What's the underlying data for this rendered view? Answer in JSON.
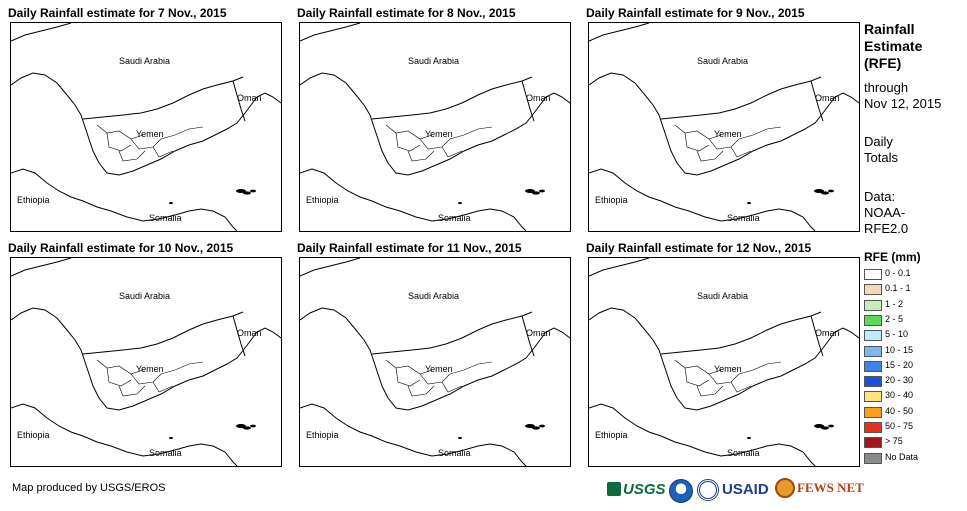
{
  "panels": [
    {
      "title": "Daily Rainfall estimate for 7 Nov., 2015"
    },
    {
      "title": "Daily Rainfall estimate for 8 Nov., 2015"
    },
    {
      "title": "Daily Rainfall estimate for 9 Nov., 2015"
    },
    {
      "title": "Daily Rainfall estimate for 10 Nov., 2015"
    },
    {
      "title": "Daily Rainfall estimate for 11 Nov., 2015"
    },
    {
      "title": "Daily Rainfall estimate for 12 Nov., 2015"
    }
  ],
  "map_labels": {
    "saudi_arabia": "Saudi Arabia",
    "oman": "Oman",
    "yemen": "Yemen",
    "ethiopia": "Ethiopia",
    "somalia": "Somalia"
  },
  "sidebar": {
    "title_line1": "Rainfall",
    "title_line2": "Estimate",
    "title_line3": "(RFE)",
    "through": "through",
    "date": "Nov 12, 2015",
    "daily1": "Daily",
    "daily2": "Totals",
    "data1": "Data:",
    "data2": "NOAA-",
    "data3": "RFE2.0"
  },
  "legend": {
    "title": "RFE (mm)",
    "items": [
      {
        "label": "0 - 0.1",
        "color": "#ffffff"
      },
      {
        "label": "0.1 - 1",
        "color": "#f2d9b8"
      },
      {
        "label": "1 - 2",
        "color": "#c2f0b8"
      },
      {
        "label": "2 - 5",
        "color": "#5ed858"
      },
      {
        "label": "5 - 10",
        "color": "#b8ecf8"
      },
      {
        "label": "10 - 15",
        "color": "#7ab8ee"
      },
      {
        "label": "15 - 20",
        "color": "#3c84e8"
      },
      {
        "label": "20 - 30",
        "color": "#1c50d8"
      },
      {
        "label": "30 - 40",
        "color": "#fde47a"
      },
      {
        "label": "40 - 50",
        "color": "#f6a21a"
      },
      {
        "label": "50 - 75",
        "color": "#e63214"
      },
      {
        "label": "> 75",
        "color": "#a01818"
      },
      {
        "label": "No Data",
        "color": "#8a8a8a"
      }
    ]
  },
  "footer": {
    "credit": "Map produced by USGS/EROS",
    "usgs": "USGS",
    "usaid": "USAID",
    "fewsnet": "FEWS NET"
  }
}
